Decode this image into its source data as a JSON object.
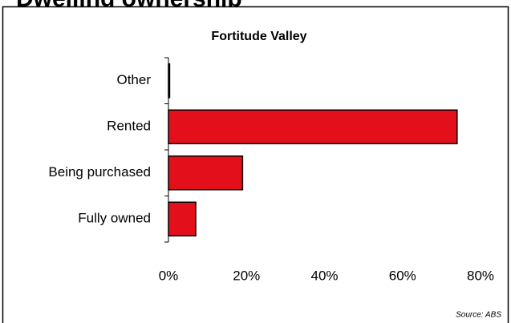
{
  "page_title": "Dwelling ownership",
  "chart_data": {
    "type": "hbar",
    "title": "Fortitude Valley",
    "categories": [
      "Other",
      "Rented",
      "Being purchased",
      "Fully owned"
    ],
    "values": [
      0.3,
      74,
      19,
      7
    ],
    "color": "#e3101c",
    "xlim": [
      0,
      80
    ],
    "xticks": [
      {
        "value": 0,
        "label": "0%"
      },
      {
        "value": 20,
        "label": "20%"
      },
      {
        "value": 40,
        "label": "40%"
      },
      {
        "value": 60,
        "label": "60%"
      },
      {
        "value": 80,
        "label": "80%"
      }
    ],
    "grid": false,
    "source": "Source:  ABS"
  }
}
